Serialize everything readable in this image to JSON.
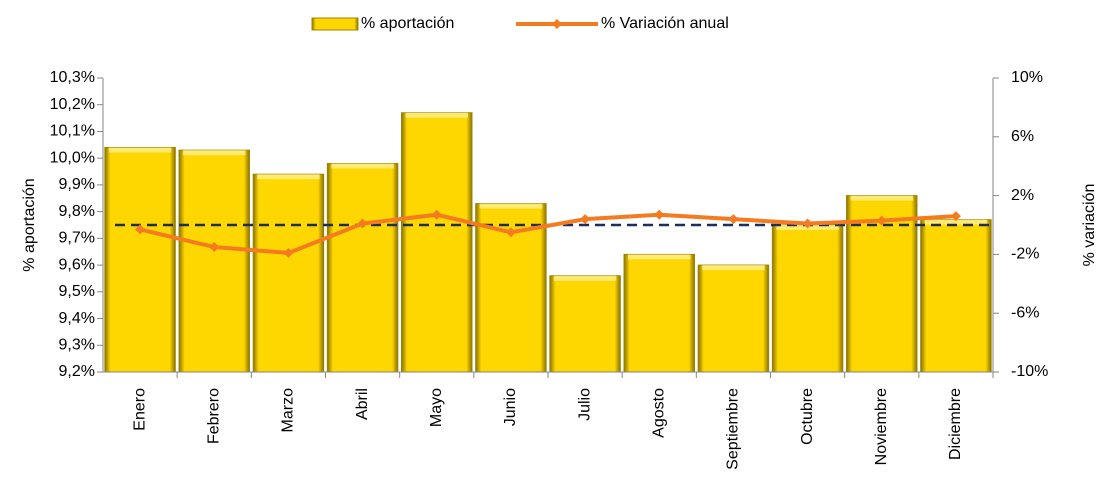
{
  "chart_data": {
    "type": "bar_line",
    "categories": [
      "Enero",
      "Febrero",
      "Marzo",
      "Abril",
      "Mayo",
      "Junio",
      "Julio",
      "Agosto",
      "Septiembre",
      "Octubre",
      "Noviembre",
      "Diciembre"
    ],
    "series": [
      {
        "name": "% aportación",
        "color": "#ffd700",
        "type": "bar",
        "values": [
          10.04,
          10.03,
          9.94,
          9.98,
          10.17,
          9.83,
          9.56,
          9.64,
          9.6,
          9.75,
          9.86,
          9.77
        ]
      },
      {
        "name": "% Variación anual",
        "color": "#f47b20",
        "type": "line",
        "axis": "y2",
        "values": [
          -0.3,
          -1.5,
          -1.9,
          0.1,
          0.7,
          -0.5,
          0.4,
          0.7,
          0.4,
          0.1,
          0.3,
          0.6
        ]
      }
    ],
    "reference_value": 9.75,
    "y_label": "% aportación",
    "y2_label": "% variación",
    "ylim": [
      9.2,
      10.3
    ],
    "yticks": [
      {
        "value": 9.2,
        "label": "9,2%"
      },
      {
        "value": 9.3,
        "label": "9,3%"
      },
      {
        "value": 9.4,
        "label": "9,4%"
      },
      {
        "value": 9.5,
        "label": "9,5%"
      },
      {
        "value": 9.6,
        "label": "9,6%"
      },
      {
        "value": 9.7,
        "label": "9,7%"
      },
      {
        "value": 9.8,
        "label": "9,8%"
      },
      {
        "value": 9.9,
        "label": "9,9%"
      },
      {
        "value": 10.0,
        "label": "10,0%"
      },
      {
        "value": 10.1,
        "label": "10,1%"
      },
      {
        "value": 10.2,
        "label": "10,2%"
      },
      {
        "value": 10.3,
        "label": "10,3%"
      }
    ],
    "y2lim": [
      -10,
      10
    ],
    "y2ticks": [
      {
        "value": -10,
        "label": "-10%"
      },
      {
        "value": -6,
        "label": "-6%"
      },
      {
        "value": -2,
        "label": "-2%"
      },
      {
        "value": 2,
        "label": "2%"
      },
      {
        "value": 6,
        "label": "6%"
      },
      {
        "value": 10,
        "label": "10%"
      }
    ],
    "legend": "top"
  }
}
